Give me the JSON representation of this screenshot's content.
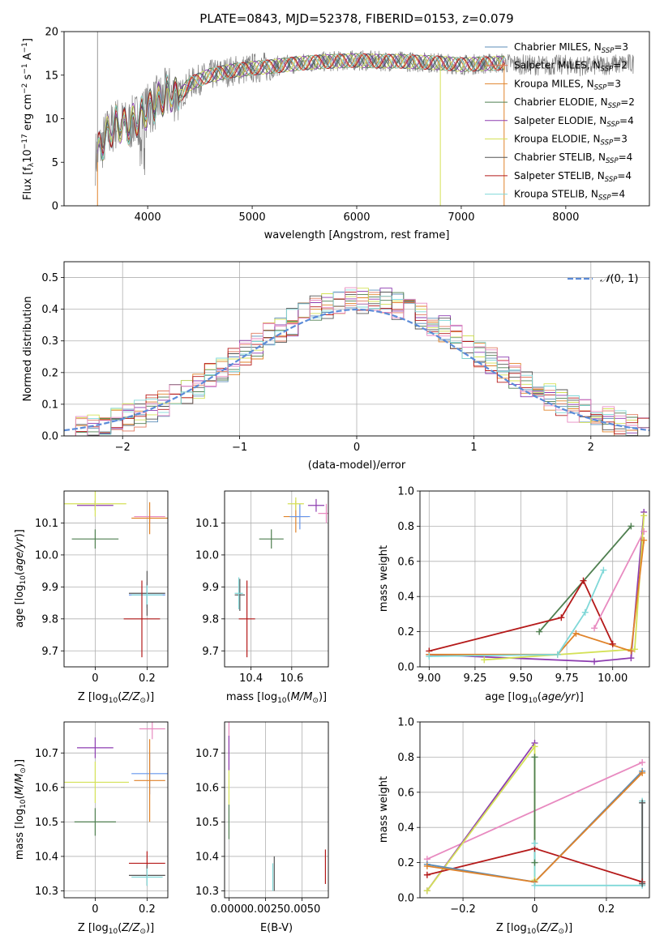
{
  "figure_title": "PLATE=0843, MJD=52378, FIBERID=0153, z=0.079",
  "colors": {
    "Chabrier MILES": "#5b8db8",
    "Salpeter MILES": "#e07a5f",
    "Kroupa MILES": "#e0832a",
    "Chabrier ELODIE": "#4f7f50",
    "Salpeter ELODIE": "#8d3db0",
    "Kroupa ELODIE": "#d4e157",
    "Chabrier STELIB": "#555555",
    "Salpeter STELIB": "#b51a1a",
    "Kroupa STELIB": "#80d8d8",
    "pink": "#e88ac0",
    "blue": "#6495ed",
    "normal": "#5b8bd8"
  },
  "chart_data": [
    {
      "id": "spectrum",
      "type": "line",
      "title": "PLATE=0843, MJD=52378, FIBERID=0153, z=0.079",
      "xlabel": "wavelength [Angstrom, rest frame]",
      "ylabel": "Flux [f_λ 10^-17 erg cm^-2 s^-1 A^-1]",
      "xlim": [
        3200,
        8800
      ],
      "ylim": [
        0,
        20
      ],
      "xticks": [
        4000,
        5000,
        6000,
        7000,
        8000
      ],
      "yticks": [
        0,
        5,
        10,
        15,
        20
      ],
      "grid": false,
      "legend_position": "top-right",
      "legend": [
        {
          "label": "Chabrier MILES, N",
          "sub": "SSP",
          "tail": "=3",
          "key": "Chabrier MILES"
        },
        {
          "label": "Salpeter MILES, N",
          "sub": "SSP",
          "tail": "=2",
          "key": "Salpeter MILES"
        },
        {
          "label": "Kroupa MILES, N",
          "sub": "SSP",
          "tail": "=3",
          "key": "Kroupa MILES"
        },
        {
          "label": "Chabrier ELODIE, N",
          "sub": "SSP",
          "tail": "=2",
          "key": "Chabrier ELODIE"
        },
        {
          "label": "Salpeter ELODIE, N",
          "sub": "SSP",
          "tail": "=4",
          "key": "Salpeter ELODIE"
        },
        {
          "label": "Kroupa ELODIE, N",
          "sub": "SSP",
          "tail": "=3",
          "key": "Kroupa ELODIE"
        },
        {
          "label": "Chabrier STELIB, N",
          "sub": "SSP",
          "tail": "=4",
          "key": "Chabrier STELIB"
        },
        {
          "label": "Salpeter STELIB, N",
          "sub": "SSP",
          "tail": "=4",
          "key": "Salpeter STELIB"
        },
        {
          "label": "Kroupa STELIB, N",
          "sub": "SSP",
          "tail": "=4",
          "key": "Kroupa STELIB"
        }
      ],
      "continuum": [
        [
          3500,
          5.5
        ],
        [
          3600,
          8
        ],
        [
          3700,
          9.5
        ],
        [
          3800,
          9
        ],
        [
          3900,
          10
        ],
        [
          4000,
          11
        ],
        [
          4100,
          12
        ],
        [
          4200,
          13
        ],
        [
          4300,
          12.5
        ],
        [
          4400,
          14
        ],
        [
          4600,
          15
        ],
        [
          4800,
          15.5
        ],
        [
          5000,
          15.8
        ],
        [
          5200,
          16
        ],
        [
          5400,
          16.3
        ],
        [
          5600,
          16.5
        ],
        [
          5800,
          16.6
        ],
        [
          6000,
          16.7
        ],
        [
          6200,
          16.6
        ],
        [
          6400,
          16.6
        ],
        [
          6600,
          16.5
        ],
        [
          6800,
          16.4
        ],
        [
          7000,
          16.2
        ],
        [
          7200,
          16.3
        ],
        [
          7400,
          16.4
        ],
        [
          7600,
          16.2
        ],
        [
          7800,
          16.1
        ],
        [
          8000,
          16.2
        ],
        [
          8200,
          16
        ],
        [
          8400,
          16.2
        ],
        [
          8600,
          16.3
        ]
      ]
    },
    {
      "id": "residuals",
      "type": "histogram",
      "xlabel": "(data-model)/error",
      "ylabel": "Normed distribution",
      "xlim": [
        -2.5,
        2.5
      ],
      "ylim": [
        0,
        0.55
      ],
      "xticks": [
        -2,
        -1,
        0,
        1,
        2
      ],
      "yticks": [
        0.0,
        0.1,
        0.2,
        0.3,
        0.4,
        0.5
      ],
      "grid": true,
      "bin_width": 0.1,
      "legend_position": "top-right",
      "legend": [
        {
          "label": "N(0, 1)",
          "key": "normal"
        }
      ],
      "reference_curve": "standard normal density"
    },
    {
      "id": "age_vs_Z",
      "type": "errorbar",
      "xlabel": "Z [log10(Z/Z☉)]",
      "ylabel": "age [log10(age/yr)]",
      "xlim": [
        -0.12,
        0.28
      ],
      "ylim": [
        9.65,
        10.2
      ],
      "xticks": [
        0.0,
        0.2
      ],
      "yticks": [
        9.7,
        9.8,
        9.9,
        10.0,
        10.1
      ],
      "grid": true,
      "points": [
        {
          "x": 0.21,
          "y": 10.12,
          "xerr": 0.06,
          "yerr": 0.02,
          "key": "pink"
        },
        {
          "x": 0.21,
          "y": 10.115,
          "xerr": 0.07,
          "yerr": 0.05,
          "key": "Kroupa MILES"
        },
        {
          "x": 0.0,
          "y": 10.155,
          "xerr": 0.07,
          "yerr": 0.015,
          "key": "Salpeter ELODIE"
        },
        {
          "x": 0.0,
          "y": 10.16,
          "xerr": 0.12,
          "yerr": 0.04,
          "key": "Kroupa ELODIE"
        },
        {
          "x": 0.0,
          "y": 10.05,
          "xerr": 0.09,
          "yerr": 0.03,
          "key": "Chabrier ELODIE"
        },
        {
          "x": 0.2,
          "y": 9.875,
          "xerr": 0.07,
          "yerr": 0.04,
          "key": "blue"
        },
        {
          "x": 0.2,
          "y": 9.88,
          "xerr": 0.07,
          "yerr": 0.07,
          "key": "Chabrier STELIB"
        },
        {
          "x": 0.2,
          "y": 9.875,
          "xerr": 0.06,
          "yerr": 0.03,
          "key": "Kroupa STELIB"
        },
        {
          "x": 0.18,
          "y": 9.8,
          "xerr": 0.07,
          "yerr": 0.12,
          "key": "Salpeter STELIB"
        }
      ]
    },
    {
      "id": "age_vs_mass",
      "type": "errorbar",
      "xlabel": "mass [log10(M/M☉)]",
      "ylabel": "",
      "xlim": [
        10.27,
        10.78
      ],
      "ylim": [
        9.65,
        10.2
      ],
      "xticks": [
        10.4,
        10.6
      ],
      "yticks": [
        9.7,
        9.8,
        9.9,
        10.0,
        10.1
      ],
      "grid": true,
      "points": [
        {
          "x": 10.77,
          "y": 10.13,
          "xerr": 0.04,
          "yerr": 0.03,
          "key": "pink"
        },
        {
          "x": 10.62,
          "y": 10.12,
          "xerr": 0.06,
          "yerr": 0.05,
          "key": "Kroupa MILES"
        },
        {
          "x": 10.64,
          "y": 10.12,
          "xerr": 0.05,
          "yerr": 0.04,
          "key": "blue"
        },
        {
          "x": 10.72,
          "y": 10.155,
          "xerr": 0.04,
          "yerr": 0.02,
          "key": "Salpeter ELODIE"
        },
        {
          "x": 10.62,
          "y": 10.16,
          "xerr": 0.04,
          "yerr": 0.02,
          "key": "Kroupa ELODIE"
        },
        {
          "x": 10.5,
          "y": 10.05,
          "xerr": 0.06,
          "yerr": 0.03,
          "key": "Chabrier ELODIE"
        },
        {
          "x": 10.345,
          "y": 9.875,
          "xerr": 0.025,
          "yerr": 0.05,
          "key": "Chabrier STELIB"
        },
        {
          "x": 10.34,
          "y": 9.88,
          "xerr": 0.02,
          "yerr": 0.05,
          "key": "Kroupa STELIB"
        },
        {
          "x": 10.38,
          "y": 9.8,
          "xerr": 0.04,
          "yerr": 0.12,
          "key": "Salpeter STELIB"
        }
      ]
    },
    {
      "id": "weight_vs_age",
      "type": "line",
      "xlabel": "age [log10(age/yr)]",
      "ylabel": "mass weight",
      "xlim": [
        8.95,
        10.2
      ],
      "ylim": [
        0,
        1
      ],
      "xticks": [
        9.0,
        9.25,
        9.5,
        9.75,
        10.0
      ],
      "xticklabels": [
        "9.00",
        "9.25",
        "9.50",
        "9.75",
        "10.00"
      ],
      "yticks": [
        0.0,
        0.2,
        0.4,
        0.6,
        0.8,
        1.0
      ],
      "grid": true,
      "series": [
        {
          "key": "Chabrier ELODIE",
          "x": [
            9.6,
            10.1
          ],
          "y": [
            0.2,
            0.8
          ]
        },
        {
          "key": "Salpeter STELIB",
          "x": [
            9.0,
            9.72,
            9.84,
            10.0
          ],
          "y": [
            0.09,
            0.28,
            0.49,
            0.13
          ]
        },
        {
          "key": "Salpeter ELODIE",
          "x": [
            9.0,
            9.9,
            10.1,
            10.17
          ],
          "y": [
            0.07,
            0.03,
            0.05,
            0.88
          ]
        },
        {
          "key": "pink",
          "x": [
            9.9,
            10.17
          ],
          "y": [
            0.22,
            0.77
          ]
        },
        {
          "key": "Kroupa ELODIE",
          "x": [
            9.3,
            10.12,
            10.17
          ],
          "y": [
            0.04,
            0.1,
            0.86
          ]
        },
        {
          "key": "Kroupa MILES",
          "x": [
            9.0,
            9.7,
            9.8,
            10.1,
            10.17
          ],
          "y": [
            0.07,
            0.07,
            0.19,
            0.09,
            0.72
          ]
        },
        {
          "key": "Kroupa STELIB",
          "x": [
            9.0,
            9.7,
            9.85,
            9.95
          ],
          "y": [
            0.06,
            0.07,
            0.31,
            0.55
          ]
        }
      ]
    },
    {
      "id": "mass_vs_Z",
      "type": "errorbar",
      "xlabel": "Z [log10(Z/Z☉)]",
      "ylabel": "mass [log10(M/M☉)]",
      "xlim": [
        -0.12,
        0.28
      ],
      "ylim": [
        10.28,
        10.79
      ],
      "xticks": [
        0.0,
        0.2
      ],
      "yticks": [
        10.3,
        10.4,
        10.5,
        10.6,
        10.7
      ],
      "grid": true,
      "points": [
        {
          "x": 0.22,
          "y": 10.77,
          "xerr": 0.05,
          "yerr": 0.03,
          "key": "pink"
        },
        {
          "x": 0.0,
          "y": 10.715,
          "xerr": 0.07,
          "yerr": 0.03,
          "key": "Salpeter ELODIE"
        },
        {
          "x": 0.21,
          "y": 10.64,
          "xerr": 0.07,
          "yerr": 0.06,
          "key": "blue"
        },
        {
          "x": 0.21,
          "y": 10.62,
          "xerr": 0.06,
          "yerr": 0.12,
          "key": "Kroupa MILES"
        },
        {
          "x": 0.0,
          "y": 10.615,
          "xerr": 0.13,
          "yerr": 0.06,
          "key": "Kroupa ELODIE"
        },
        {
          "x": 0.0,
          "y": 10.5,
          "xerr": 0.08,
          "yerr": 0.04,
          "key": "Chabrier ELODIE"
        },
        {
          "x": 0.2,
          "y": 10.38,
          "xerr": 0.07,
          "yerr": 0.035,
          "key": "Salpeter STELIB"
        },
        {
          "x": 0.2,
          "y": 10.345,
          "xerr": 0.07,
          "yerr": 0.03,
          "key": "Chabrier STELIB"
        },
        {
          "x": 0.2,
          "y": 10.34,
          "xerr": 0.06,
          "yerr": 0.025,
          "key": "Kroupa STELIB"
        }
      ]
    },
    {
      "id": "mass_vs_ebv",
      "type": "errorbar",
      "xlabel": "E(B-V)",
      "ylabel": "",
      "xlim": [
        -0.0003,
        0.0068
      ],
      "ylim": [
        10.28,
        10.79
      ],
      "xticks": [
        0.0,
        0.0025,
        0.005
      ],
      "xticklabels": [
        "0.0000",
        "0.0025",
        "0.0050"
      ],
      "yticks": [
        10.3,
        10.4,
        10.5,
        10.6,
        10.7
      ],
      "grid": true,
      "points": [
        {
          "x": 0.0,
          "y": 10.72,
          "xerr": 0,
          "yerr": 0.07,
          "key": "pink"
        },
        {
          "x": 0.0,
          "y": 10.7,
          "xerr": 0,
          "yerr": 0.05,
          "key": "Salpeter ELODIE"
        },
        {
          "x": 0.0,
          "y": 10.6,
          "xerr": 0,
          "yerr": 0.05,
          "key": "Kroupa ELODIE"
        },
        {
          "x": 0.0,
          "y": 10.5,
          "xerr": 0,
          "yerr": 0.05,
          "key": "Chabrier ELODIE"
        },
        {
          "x": 0.0031,
          "y": 10.35,
          "xerr": 0,
          "yerr": 0.05,
          "key": "Chabrier STELIB"
        },
        {
          "x": 0.003,
          "y": 10.34,
          "xerr": 0,
          "yerr": 0.04,
          "key": "Kroupa STELIB"
        },
        {
          "x": 0.0066,
          "y": 10.37,
          "xerr": 0,
          "yerr": 0.05,
          "key": "Salpeter STELIB"
        }
      ]
    },
    {
      "id": "weight_vs_Z",
      "type": "line",
      "xlabel": "Z [log10(Z/Z☉)]",
      "ylabel": "mass weight",
      "xlim": [
        -0.32,
        0.32
      ],
      "ylim": [
        0,
        1
      ],
      "xticks": [
        -0.2,
        0.0,
        0.2
      ],
      "yticks": [
        0.0,
        0.2,
        0.4,
        0.6,
        0.8,
        1.0
      ],
      "grid": true,
      "series": [
        {
          "key": "pink",
          "x": [
            -0.3,
            0.3
          ],
          "y": [
            0.22,
            0.77
          ]
        },
        {
          "key": "Salpeter ELODIE",
          "x": [
            -0.3,
            0.0
          ],
          "y": [
            0.04,
            0.88
          ]
        },
        {
          "key": "Kroupa ELODIE",
          "x": [
            -0.3,
            0.0,
            0.0
          ],
          "y": [
            0.04,
            0.86,
            0.1
          ]
        },
        {
          "key": "Salpeter STELIB",
          "x": [
            -0.3,
            0.0,
            0.3
          ],
          "y": [
            0.13,
            0.28,
            0.09
          ]
        },
        {
          "key": "Chabrier MILES",
          "x": [
            -0.3,
            0.0,
            0.3
          ],
          "y": [
            0.19,
            0.09,
            0.72
          ]
        },
        {
          "key": "Kroupa MILES",
          "x": [
            -0.3,
            0.0,
            0.3
          ],
          "y": [
            0.18,
            0.09,
            0.71
          ]
        },
        {
          "key": "Chabrier ELODIE",
          "x": [
            0.0,
            0.0
          ],
          "y": [
            0.2,
            0.8
          ]
        },
        {
          "key": "Kroupa STELIB",
          "x": [
            0.0,
            0.0,
            0.3,
            0.3
          ],
          "y": [
            0.31,
            0.07,
            0.07,
            0.55
          ]
        },
        {
          "key": "Chabrier STELIB",
          "x": [
            0.3,
            0.3
          ],
          "y": [
            0.08,
            0.54
          ]
        }
      ]
    }
  ]
}
